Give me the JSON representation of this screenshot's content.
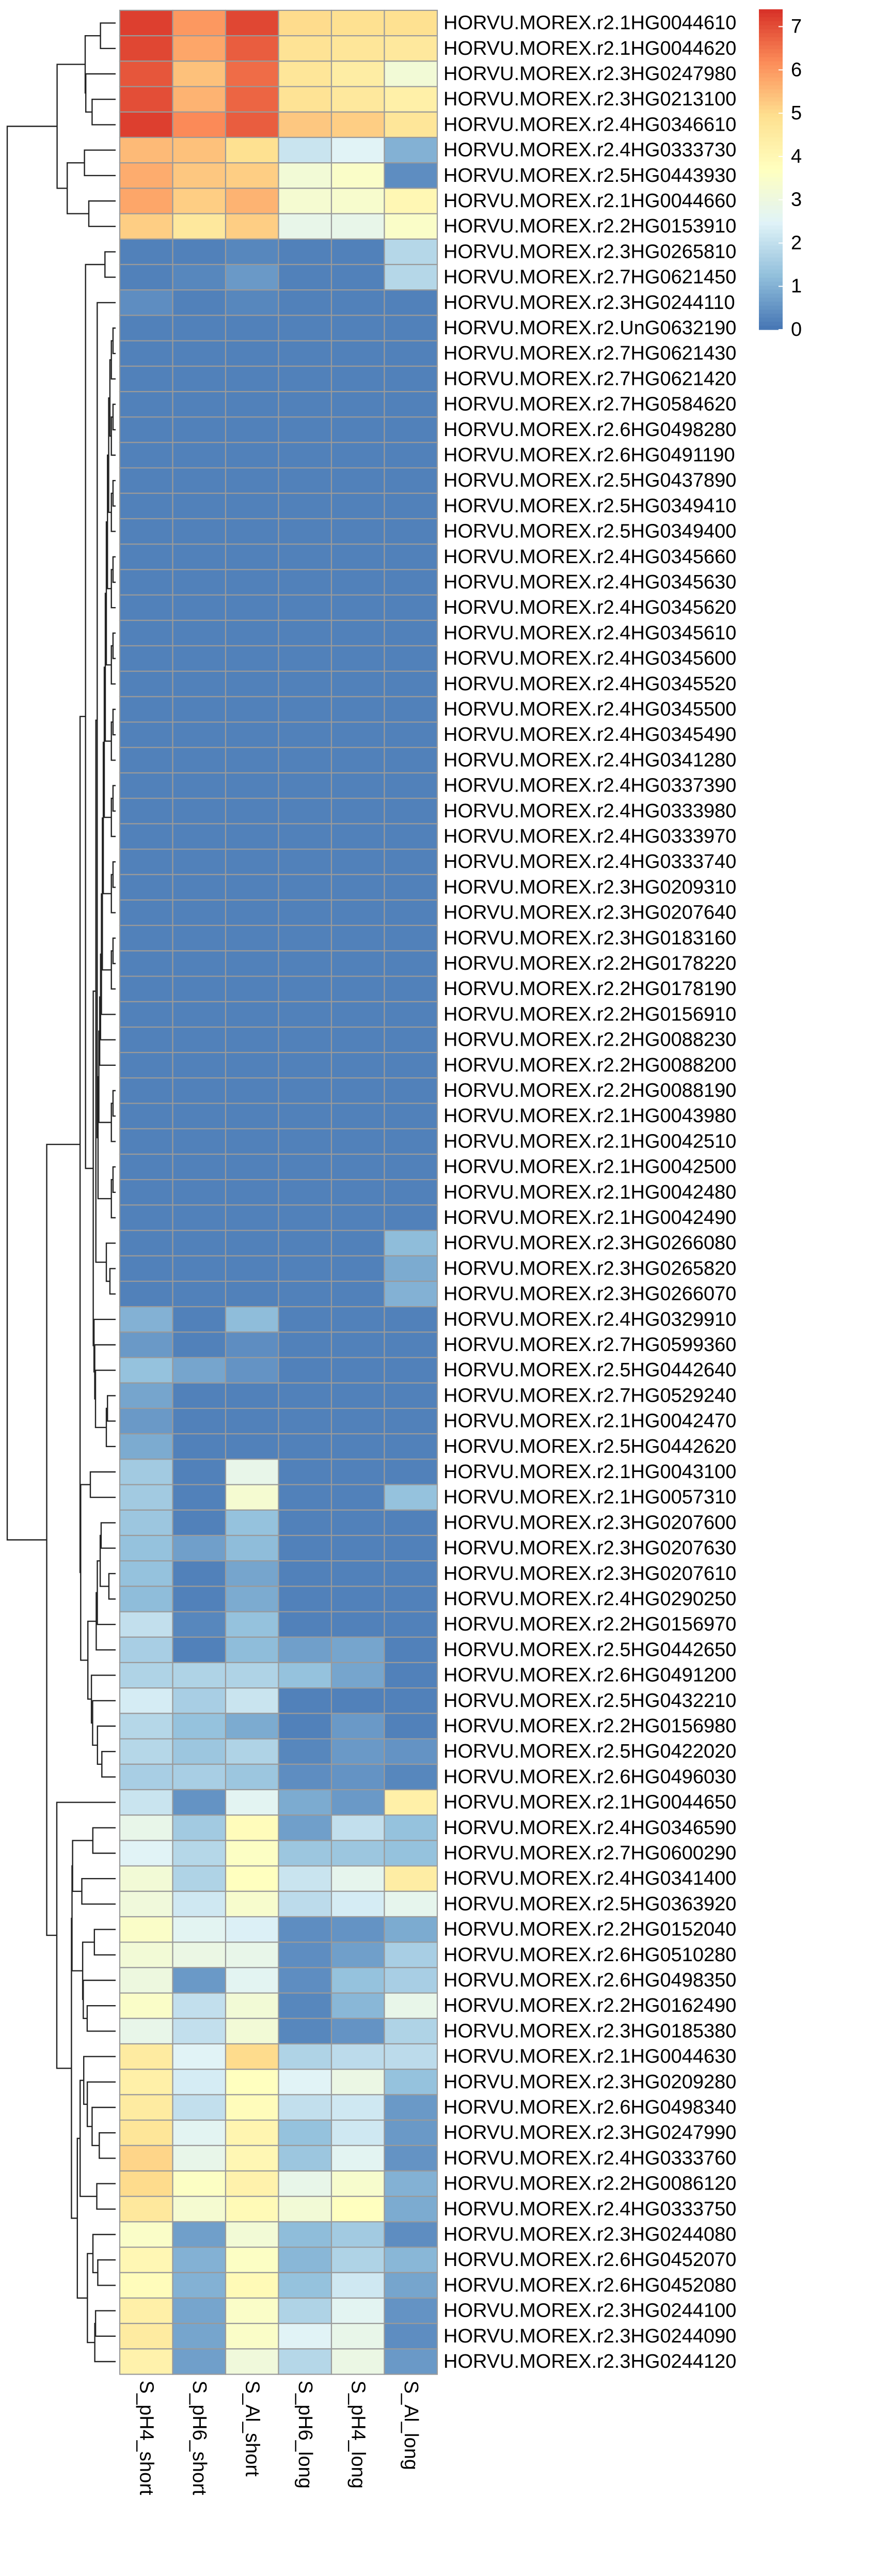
{
  "chart_data": {
    "type": "heatmap",
    "columns": [
      "S_pH4_short",
      "S_pH6_short",
      "S_Al_short",
      "S_pH6_long",
      "S_pH4_long",
      "S_Al_long"
    ],
    "rows": [
      "HORVU.MOREX.r2.1HG0044610",
      "HORVU.MOREX.r2.1HG0044620",
      "HORVU.MOREX.r2.3HG0247980",
      "HORVU.MOREX.r2.3HG0213100",
      "HORVU.MOREX.r2.4HG0346610",
      "HORVU.MOREX.r2.4HG0333730",
      "HORVU.MOREX.r2.5HG0443930",
      "HORVU.MOREX.r2.1HG0044660",
      "HORVU.MOREX.r2.2HG0153910",
      "HORVU.MOREX.r2.3HG0265810",
      "HORVU.MOREX.r2.7HG0621450",
      "HORVU.MOREX.r2.3HG0244110",
      "HORVU.MOREX.r2.UnG0632190",
      "HORVU.MOREX.r2.7HG0621430",
      "HORVU.MOREX.r2.7HG0621420",
      "HORVU.MOREX.r2.7HG0584620",
      "HORVU.MOREX.r2.6HG0498280",
      "HORVU.MOREX.r2.6HG0491190",
      "HORVU.MOREX.r2.5HG0437890",
      "HORVU.MOREX.r2.5HG0349410",
      "HORVU.MOREX.r2.5HG0349400",
      "HORVU.MOREX.r2.4HG0345660",
      "HORVU.MOREX.r2.4HG0345630",
      "HORVU.MOREX.r2.4HG0345620",
      "HORVU.MOREX.r2.4HG0345610",
      "HORVU.MOREX.r2.4HG0345600",
      "HORVU.MOREX.r2.4HG0345520",
      "HORVU.MOREX.r2.4HG0345500",
      "HORVU.MOREX.r2.4HG0345490",
      "HORVU.MOREX.r2.4HG0341280",
      "HORVU.MOREX.r2.4HG0337390",
      "HORVU.MOREX.r2.4HG0333980",
      "HORVU.MOREX.r2.4HG0333970",
      "HORVU.MOREX.r2.4HG0333740",
      "HORVU.MOREX.r2.3HG0209310",
      "HORVU.MOREX.r2.3HG0207640",
      "HORVU.MOREX.r2.3HG0183160",
      "HORVU.MOREX.r2.2HG0178220",
      "HORVU.MOREX.r2.2HG0178190",
      "HORVU.MOREX.r2.2HG0156910",
      "HORVU.MOREX.r2.2HG0088230",
      "HORVU.MOREX.r2.2HG0088200",
      "HORVU.MOREX.r2.2HG0088190",
      "HORVU.MOREX.r2.1HG0043980",
      "HORVU.MOREX.r2.1HG0042510",
      "HORVU.MOREX.r2.1HG0042500",
      "HORVU.MOREX.r2.1HG0042480",
      "HORVU.MOREX.r2.1HG0042490",
      "HORVU.MOREX.r2.3HG0266080",
      "HORVU.MOREX.r2.3HG0265820",
      "HORVU.MOREX.r2.3HG0266070",
      "HORVU.MOREX.r2.4HG0329910",
      "HORVU.MOREX.r2.7HG0599360",
      "HORVU.MOREX.r2.5HG0442640",
      "HORVU.MOREX.r2.7HG0529240",
      "HORVU.MOREX.r2.1HG0042470",
      "HORVU.MOREX.r2.5HG0442620",
      "HORVU.MOREX.r2.1HG0043100",
      "HORVU.MOREX.r2.1HG0057310",
      "HORVU.MOREX.r2.3HG0207600",
      "HORVU.MOREX.r2.3HG0207630",
      "HORVU.MOREX.r2.3HG0207610",
      "HORVU.MOREX.r2.4HG0290250",
      "HORVU.MOREX.r2.2HG0156970",
      "HORVU.MOREX.r2.5HG0442650",
      "HORVU.MOREX.r2.6HG0491200",
      "HORVU.MOREX.r2.5HG0432210",
      "HORVU.MOREX.r2.2HG0156980",
      "HORVU.MOREX.r2.5HG0422020",
      "HORVU.MOREX.r2.6HG0496030",
      "HORVU.MOREX.r2.1HG0044650",
      "HORVU.MOREX.r2.4HG0346590",
      "HORVU.MOREX.r2.7HG0600290",
      "HORVU.MOREX.r2.4HG0341400",
      "HORVU.MOREX.r2.5HG0363920",
      "HORVU.MOREX.r2.2HG0152040",
      "HORVU.MOREX.r2.6HG0510280",
      "HORVU.MOREX.r2.6HG0498350",
      "HORVU.MOREX.r2.2HG0162490",
      "HORVU.MOREX.r2.3HG0185380",
      "HORVU.MOREX.r2.1HG0044630",
      "HORVU.MOREX.r2.3HG0209280",
      "HORVU.MOREX.r2.6HG0498340",
      "HORVU.MOREX.r2.3HG0247990",
      "HORVU.MOREX.r2.4HG0333760",
      "HORVU.MOREX.r2.2HG0086120",
      "HORVU.MOREX.r2.4HG0333750",
      "HORVU.MOREX.r2.3HG0244080",
      "HORVU.MOREX.r2.6HG0452070",
      "HORVU.MOREX.r2.6HG0452080",
      "HORVU.MOREX.r2.3HG0244100",
      "HORVU.MOREX.r2.3HG0244090",
      "HORVU.MOREX.r2.3HG0244120"
    ],
    "values": [
      [
        7.2,
        6.0,
        7.1,
        5.0,
        4.9,
        4.9
      ],
      [
        7.1,
        5.8,
        6.8,
        4.8,
        4.7,
        4.6
      ],
      [
        6.9,
        5.4,
        6.6,
        4.7,
        4.4,
        3.2
      ],
      [
        7.0,
        5.6,
        6.7,
        4.8,
        4.6,
        4.3
      ],
      [
        7.2,
        6.2,
        6.8,
        5.3,
        5.2,
        4.7
      ],
      [
        5.5,
        5.4,
        4.9,
        2.1,
        2.5,
        1.0
      ],
      [
        5.7,
        5.3,
        5.2,
        3.2,
        3.5,
        0.4
      ],
      [
        5.8,
        5.2,
        5.6,
        3.3,
        3.4,
        4.0
      ],
      [
        5.2,
        4.6,
        5.2,
        2.8,
        2.8,
        3.5
      ],
      [
        0.2,
        0.2,
        0.3,
        0.2,
        0.2,
        1.8
      ],
      [
        0.2,
        0.3,
        0.6,
        0.2,
        0.2,
        1.8
      ],
      [
        0.4,
        0.2,
        0.3,
        0.2,
        0.2,
        0.2
      ],
      [
        0.2,
        0.2,
        0.2,
        0.2,
        0.2,
        0.2
      ],
      [
        0.2,
        0.2,
        0.2,
        0.2,
        0.2,
        0.2
      ],
      [
        0.2,
        0.2,
        0.2,
        0.2,
        0.2,
        0.2
      ],
      [
        0.2,
        0.2,
        0.2,
        0.2,
        0.2,
        0.2
      ],
      [
        0.2,
        0.2,
        0.2,
        0.2,
        0.2,
        0.2
      ],
      [
        0.2,
        0.2,
        0.2,
        0.2,
        0.2,
        0.2
      ],
      [
        0.2,
        0.2,
        0.2,
        0.2,
        0.2,
        0.2
      ],
      [
        0.2,
        0.2,
        0.2,
        0.2,
        0.2,
        0.2
      ],
      [
        0.2,
        0.2,
        0.2,
        0.2,
        0.2,
        0.2
      ],
      [
        0.2,
        0.2,
        0.2,
        0.2,
        0.2,
        0.2
      ],
      [
        0.2,
        0.2,
        0.2,
        0.2,
        0.2,
        0.2
      ],
      [
        0.2,
        0.2,
        0.2,
        0.2,
        0.2,
        0.2
      ],
      [
        0.2,
        0.2,
        0.2,
        0.2,
        0.2,
        0.2
      ],
      [
        0.2,
        0.2,
        0.2,
        0.2,
        0.2,
        0.2
      ],
      [
        0.2,
        0.2,
        0.2,
        0.2,
        0.2,
        0.2
      ],
      [
        0.2,
        0.2,
        0.2,
        0.2,
        0.2,
        0.2
      ],
      [
        0.2,
        0.2,
        0.2,
        0.2,
        0.2,
        0.2
      ],
      [
        0.2,
        0.2,
        0.2,
        0.2,
        0.2,
        0.2
      ],
      [
        0.2,
        0.2,
        0.2,
        0.2,
        0.2,
        0.2
      ],
      [
        0.2,
        0.2,
        0.2,
        0.2,
        0.2,
        0.2
      ],
      [
        0.2,
        0.2,
        0.2,
        0.2,
        0.2,
        0.2
      ],
      [
        0.2,
        0.2,
        0.2,
        0.2,
        0.2,
        0.2
      ],
      [
        0.2,
        0.2,
        0.2,
        0.2,
        0.2,
        0.2
      ],
      [
        0.2,
        0.2,
        0.2,
        0.2,
        0.2,
        0.2
      ],
      [
        0.2,
        0.2,
        0.2,
        0.2,
        0.2,
        0.2
      ],
      [
        0.2,
        0.2,
        0.2,
        0.2,
        0.2,
        0.2
      ],
      [
        0.2,
        0.2,
        0.2,
        0.2,
        0.2,
        0.2
      ],
      [
        0.2,
        0.2,
        0.2,
        0.2,
        0.2,
        0.2
      ],
      [
        0.2,
        0.2,
        0.2,
        0.2,
        0.2,
        0.2
      ],
      [
        0.2,
        0.2,
        0.2,
        0.2,
        0.2,
        0.2
      ],
      [
        0.2,
        0.2,
        0.2,
        0.2,
        0.2,
        0.2
      ],
      [
        0.2,
        0.2,
        0.2,
        0.2,
        0.2,
        0.2
      ],
      [
        0.2,
        0.2,
        0.2,
        0.2,
        0.2,
        0.2
      ],
      [
        0.2,
        0.2,
        0.2,
        0.2,
        0.2,
        0.2
      ],
      [
        0.2,
        0.2,
        0.2,
        0.2,
        0.2,
        0.2
      ],
      [
        0.2,
        0.2,
        0.2,
        0.2,
        0.2,
        0.2
      ],
      [
        0.2,
        0.2,
        0.2,
        0.2,
        0.2,
        1.2
      ],
      [
        0.2,
        0.2,
        0.2,
        0.2,
        0.2,
        0.9
      ],
      [
        0.2,
        0.2,
        0.2,
        0.2,
        0.2,
        1.0
      ],
      [
        1.0,
        0.2,
        1.2,
        0.2,
        0.2,
        0.2
      ],
      [
        0.6,
        0.2,
        0.4,
        0.2,
        0.2,
        0.2
      ],
      [
        1.3,
        0.8,
        0.5,
        0.2,
        0.2,
        0.2
      ],
      [
        0.8,
        0.2,
        0.2,
        0.2,
        0.2,
        0.2
      ],
      [
        0.6,
        0.2,
        0.2,
        0.2,
        0.2,
        0.2
      ],
      [
        0.9,
        0.2,
        0.2,
        0.2,
        0.2,
        0.2
      ],
      [
        1.5,
        0.2,
        2.8,
        0.2,
        0.2,
        0.2
      ],
      [
        1.5,
        0.2,
        3.3,
        0.2,
        0.2,
        1.3
      ],
      [
        1.4,
        0.2,
        1.3,
        0.2,
        0.2,
        0.2
      ],
      [
        1.3,
        0.7,
        1.2,
        0.2,
        0.2,
        0.2
      ],
      [
        1.3,
        0.2,
        0.8,
        0.2,
        0.2,
        0.2
      ],
      [
        1.2,
        0.2,
        0.9,
        0.2,
        0.2,
        0.2
      ],
      [
        2.0,
        0.3,
        1.3,
        0.2,
        0.2,
        0.2
      ],
      [
        1.6,
        0.2,
        1.2,
        0.7,
        0.8,
        0.2
      ],
      [
        1.7,
        1.7,
        1.7,
        1.3,
        0.8,
        0.2
      ],
      [
        2.3,
        1.6,
        2.1,
        0.2,
        0.2,
        0.2
      ],
      [
        1.8,
        1.3,
        0.9,
        0.2,
        0.6,
        0.2
      ],
      [
        1.8,
        1.4,
        1.7,
        0.3,
        0.6,
        0.5
      ],
      [
        1.6,
        1.6,
        1.4,
        0.4,
        0.5,
        0.3
      ],
      [
        2.1,
        0.5,
        2.6,
        0.9,
        0.6,
        4.3
      ],
      [
        2.8,
        1.5,
        3.8,
        0.7,
        2.0,
        1.3
      ],
      [
        2.5,
        1.8,
        3.6,
        1.4,
        1.4,
        1.3
      ],
      [
        3.2,
        1.7,
        3.7,
        2.1,
        2.7,
        4.4
      ],
      [
        3.1,
        2.2,
        3.4,
        1.9,
        2.3,
        2.7
      ],
      [
        3.5,
        2.6,
        2.4,
        0.4,
        0.5,
        0.9
      ],
      [
        3.2,
        2.9,
        2.8,
        0.4,
        0.7,
        1.6
      ],
      [
        3.0,
        0.6,
        2.6,
        0.4,
        1.3,
        1.6
      ],
      [
        3.5,
        2.0,
        3.2,
        0.3,
        1.1,
        2.8
      ],
      [
        2.8,
        2.0,
        3.2,
        0.3,
        0.5,
        1.7
      ],
      [
        4.5,
        2.5,
        5.0,
        1.7,
        1.9,
        1.9
      ],
      [
        4.3,
        2.3,
        3.7,
        2.5,
        2.9,
        1.3
      ],
      [
        4.5,
        2.0,
        3.8,
        2.0,
        2.2,
        0.6
      ],
      [
        4.7,
        2.6,
        4.1,
        1.3,
        2.2,
        0.6
      ],
      [
        5.1,
        2.8,
        4.0,
        1.4,
        2.6,
        0.5
      ],
      [
        5.0,
        3.6,
        4.2,
        2.8,
        3.4,
        1.0
      ],
      [
        4.6,
        3.3,
        3.9,
        3.2,
        3.7,
        0.9
      ],
      [
        3.5,
        0.7,
        3.2,
        1.2,
        1.5,
        0.4
      ],
      [
        4.0,
        1.0,
        3.6,
        1.1,
        1.7,
        1.1
      ],
      [
        3.8,
        1.0,
        3.9,
        1.3,
        2.2,
        0.8
      ],
      [
        4.3,
        0.8,
        3.5,
        1.7,
        2.6,
        0.5
      ],
      [
        4.5,
        0.8,
        3.5,
        2.5,
        2.8,
        0.4
      ],
      [
        4.2,
        0.7,
        3.1,
        1.8,
        2.9,
        0.6
      ]
    ],
    "legend": {
      "ticks": [
        0,
        1,
        2,
        3,
        4,
        5,
        6,
        7
      ],
      "range": [
        0,
        7.4
      ],
      "placement": "top-right"
    },
    "color_scale": [
      "#4575b4",
      "#91bfdb",
      "#e0f3f8",
      "#ffffbf",
      "#fee090",
      "#fc8d59",
      "#d73027"
    ],
    "row_dendrogram": true,
    "grid_color": "#9a9a9a"
  }
}
